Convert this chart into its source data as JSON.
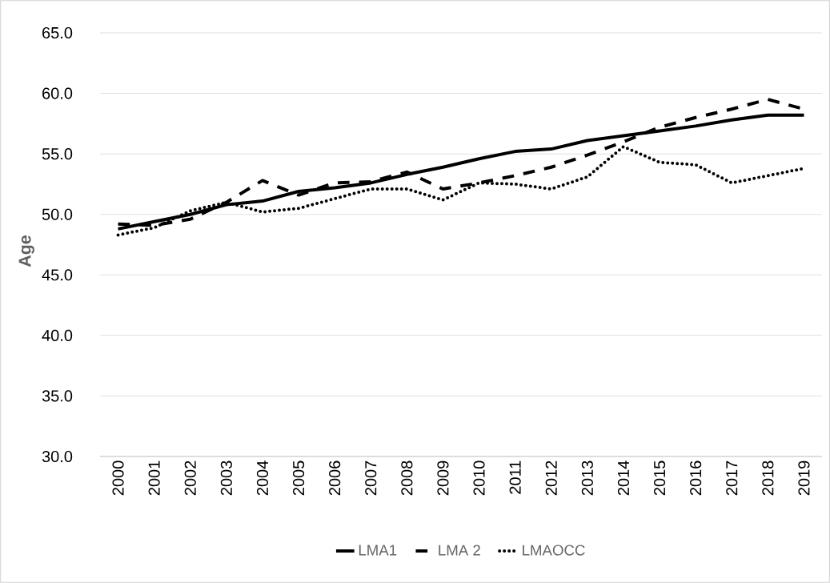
{
  "chart_data": {
    "type": "line",
    "ylabel": "Age",
    "categories": [
      "2000",
      "2001",
      "2002",
      "2003",
      "2004",
      "2005",
      "2006",
      "2007",
      "2008",
      "2009",
      "2010",
      "2011",
      "2012",
      "2013",
      "2014",
      "2015",
      "2016",
      "2017",
      "2018",
      "2019"
    ],
    "ylim": [
      30,
      65
    ],
    "yticks": [
      {
        "value": 30,
        "label": "30.0"
      },
      {
        "value": 35,
        "label": "35.0"
      },
      {
        "value": 40,
        "label": "40.0"
      },
      {
        "value": 45,
        "label": "45.0"
      },
      {
        "value": 50,
        "label": "50.0"
      },
      {
        "value": 55,
        "label": "55.0"
      },
      {
        "value": 60,
        "label": "60.0"
      },
      {
        "value": 65,
        "label": "65.0"
      }
    ],
    "grid": "y",
    "legend": "bottom",
    "marker": "none",
    "series": [
      {
        "name": "LMA1",
        "color": "#000000",
        "line_style": "solid",
        "values": [
          48.8,
          49.4,
          50.0,
          50.8,
          51.1,
          51.9,
          52.2,
          52.6,
          53.3,
          53.9,
          54.6,
          55.2,
          55.4,
          56.1,
          56.5,
          56.9,
          57.3,
          57.8,
          58.2,
          58.2
        ]
      },
      {
        "name": "LMA 2",
        "color": "#000000",
        "line_style": "dashed",
        "values": [
          49.2,
          49.1,
          49.6,
          51.0,
          52.8,
          51.6,
          52.6,
          52.7,
          53.5,
          52.1,
          52.6,
          53.2,
          53.9,
          54.9,
          56.0,
          57.2,
          58.0,
          58.7,
          59.5,
          58.7
        ]
      },
      {
        "name": "LMAOCC",
        "color": "#000000",
        "line_style": "dotted",
        "values": [
          48.3,
          48.9,
          50.3,
          51.0,
          50.2,
          50.5,
          51.3,
          52.1,
          52.1,
          51.2,
          52.6,
          52.5,
          52.1,
          53.1,
          55.6,
          54.3,
          54.1,
          52.6,
          53.2,
          53.8
        ]
      }
    ]
  }
}
